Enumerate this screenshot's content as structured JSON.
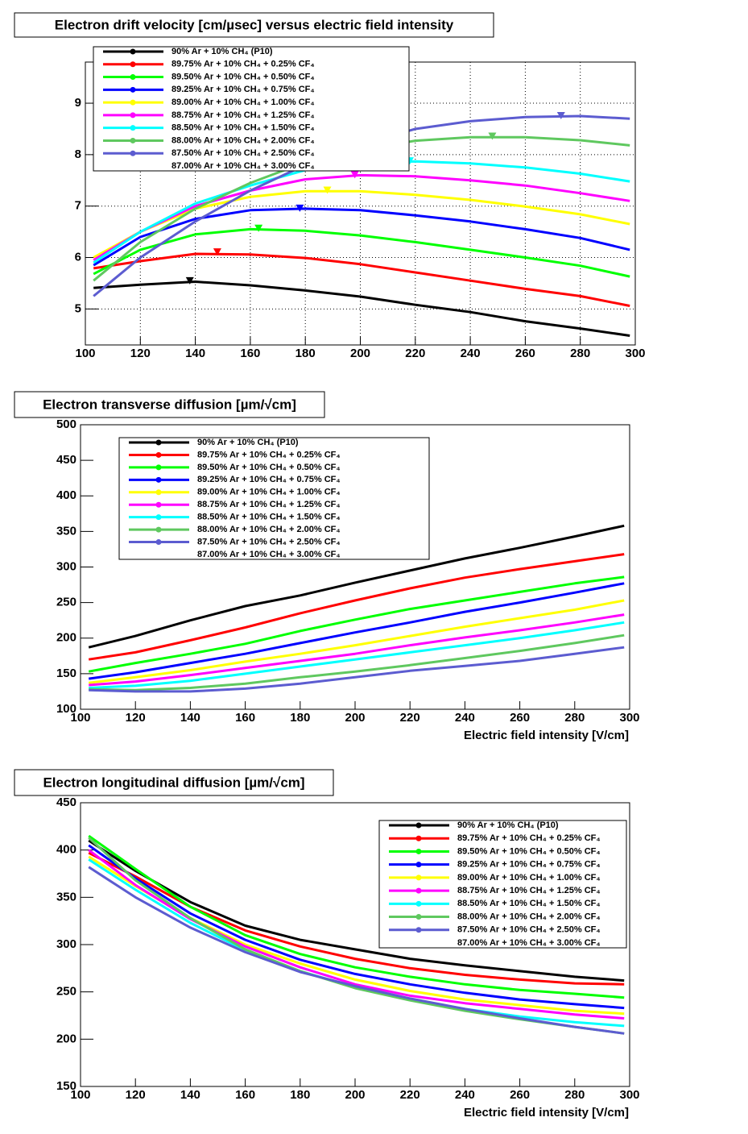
{
  "chart_data": [
    {
      "type": "line",
      "title": "Electron drift velocity [cm/µsec] versus electric field intensity",
      "x": [
        103,
        120,
        140,
        160,
        180,
        200,
        220,
        240,
        260,
        280,
        298
      ],
      "xlim": [
        100,
        300
      ],
      "xticks": [
        100,
        120,
        140,
        160,
        180,
        200,
        220,
        240,
        260,
        280,
        300
      ],
      "ylim": [
        4.3,
        9.8
      ],
      "yticks": [
        5,
        6,
        7,
        8,
        9
      ],
      "grid": true,
      "series": [
        {
          "name": "90% Ar + 10% CH₄ (P10)",
          "color": "#000000",
          "values": [
            5.41,
            5.47,
            5.53,
            5.46,
            5.36,
            5.24,
            5.08,
            4.94,
            4.76,
            4.62,
            4.48
          ],
          "peak": [
            138,
            5.54
          ]
        },
        {
          "name": "89.75% Ar + 10% CH₄ + 0.25% CF₄",
          "color": "#ff0000",
          "values": [
            5.79,
            5.93,
            6.07,
            6.06,
            5.99,
            5.87,
            5.71,
            5.55,
            5.39,
            5.25,
            5.06
          ],
          "peak": [
            148,
            6.1
          ]
        },
        {
          "name": "89.50% Ar + 10% CH₄ + 0.50% CF₄",
          "color": "#00ff00",
          "values": [
            5.68,
            6.15,
            6.45,
            6.55,
            6.52,
            6.43,
            6.3,
            6.15,
            6.0,
            5.84,
            5.63
          ],
          "peak": [
            163,
            6.56
          ]
        },
        {
          "name": "89.25% Ar + 10% CH₄ + 0.75% CF₄",
          "color": "#0000ff",
          "values": [
            5.85,
            6.4,
            6.75,
            6.92,
            6.95,
            6.92,
            6.82,
            6.7,
            6.55,
            6.38,
            6.15
          ],
          "peak": [
            178,
            6.95
          ]
        },
        {
          "name": "89.00% Ar + 10% CH₄ + 1.00% CF₄",
          "color": "#ffff00",
          "values": [
            6.0,
            6.5,
            6.95,
            7.18,
            7.29,
            7.29,
            7.22,
            7.12,
            6.99,
            6.84,
            6.65
          ],
          "peak": [
            188,
            7.3
          ]
        },
        {
          "name": "88.75% Ar + 10% CH₄ + 1.25% CF₄",
          "color": "#ff00ff",
          "values": [
            5.95,
            6.5,
            7.0,
            7.3,
            7.52,
            7.6,
            7.58,
            7.5,
            7.4,
            7.25,
            7.1
          ],
          "peak": [
            198,
            7.6
          ]
        },
        {
          "name": "88.50% Ar + 10% CH₄ + 1.50% CF₄",
          "color": "#00ffff",
          "values": [
            5.9,
            6.5,
            7.05,
            7.4,
            7.7,
            7.83,
            7.87,
            7.83,
            7.75,
            7.63,
            7.48
          ],
          "peak": [
            218,
            7.87
          ]
        },
        {
          "name": "88.00% Ar + 10% CH₄ + 2.00% CF₄",
          "color": "#5fc85f",
          "values": [
            5.55,
            6.3,
            6.95,
            7.45,
            7.85,
            8.1,
            8.27,
            8.34,
            8.34,
            8.28,
            8.18
          ],
          "peak": [
            248,
            8.35
          ]
        },
        {
          "name": "87.50% Ar + 10% CH₄ + 2.50% CF₄",
          "color": "#5c5cd0",
          "values": [
            5.25,
            6.0,
            6.7,
            7.3,
            7.8,
            8.2,
            8.5,
            8.65,
            8.73,
            8.75,
            8.7
          ],
          "peak": [
            273,
            8.75
          ]
        },
        {
          "name": "87.00% Ar + 10% CH₄ + 3.00% CF₄",
          "color": "#ffffff",
          "values": [
            null,
            null,
            null,
            null,
            null,
            null,
            null,
            null,
            null,
            null,
            null
          ]
        }
      ]
    },
    {
      "type": "line",
      "title": "Electron transverse diffusion [µm/√cm]",
      "x_label": "Electric field intensity [V/cm]",
      "x": [
        103,
        120,
        140,
        160,
        180,
        200,
        220,
        240,
        260,
        280,
        298
      ],
      "xlim": [
        100,
        300
      ],
      "xticks": [
        100,
        120,
        140,
        160,
        180,
        200,
        220,
        240,
        260,
        280,
        300
      ],
      "ylim": [
        100,
        500
      ],
      "yticks": [
        100,
        150,
        200,
        250,
        300,
        350,
        400,
        450,
        500
      ],
      "grid": false,
      "series": [
        {
          "name": "90% Ar + 10% CH₄ (P10)",
          "color": "#000000",
          "values": [
            187,
            203,
            225,
            245,
            260,
            278,
            295,
            312,
            327,
            343,
            358
          ]
        },
        {
          "name": "89.75% Ar + 10% CH₄ + 0.25% CF₄",
          "color": "#ff0000",
          "values": [
            170,
            180,
            197,
            215,
            235,
            253,
            270,
            285,
            297,
            308,
            318
          ]
        },
        {
          "name": "89.50% Ar + 10% CH₄ + 0.50% CF₄",
          "color": "#00ff00",
          "values": [
            153,
            165,
            178,
            192,
            210,
            226,
            241,
            253,
            265,
            277,
            286
          ]
        },
        {
          "name": "89.25% Ar + 10% CH₄ + 0.75% CF₄",
          "color": "#0000ff",
          "values": [
            143,
            152,
            165,
            178,
            193,
            208,
            222,
            237,
            250,
            264,
            277
          ]
        },
        {
          "name": "89.00% Ar + 10% CH₄ + 1.00% CF₄",
          "color": "#ffff00",
          "values": [
            137,
            145,
            155,
            167,
            178,
            190,
            203,
            216,
            228,
            240,
            253
          ]
        },
        {
          "name": "88.75% Ar + 10% CH₄ + 1.25% CF₄",
          "color": "#ff00ff",
          "values": [
            134,
            139,
            148,
            158,
            168,
            178,
            190,
            201,
            211,
            222,
            233
          ]
        },
        {
          "name": "88.50% Ar + 10% CH₄ + 1.50% CF₄",
          "color": "#00ffff",
          "values": [
            130,
            133,
            140,
            150,
            160,
            170,
            180,
            190,
            200,
            211,
            222
          ]
        },
        {
          "name": "88.00% Ar + 10% CH₄ + 2.00% CF₄",
          "color": "#5fc85f",
          "values": [
            128,
            127,
            130,
            136,
            145,
            153,
            162,
            172,
            182,
            193,
            204
          ]
        },
        {
          "name": "87.50% Ar + 10% CH₄ + 2.50% CF₄",
          "color": "#5c5cd0",
          "values": [
            127,
            125,
            125,
            129,
            136,
            145,
            154,
            161,
            168,
            178,
            187
          ]
        },
        {
          "name": "87.00% Ar + 10% CH₄ + 3.00% CF₄",
          "color": "#ffffff",
          "values": [
            null,
            null,
            null,
            null,
            null,
            null,
            null,
            null,
            null,
            null,
            null
          ]
        }
      ]
    },
    {
      "type": "line",
      "title": "Electron longitudinal diffusion [µm/√cm]",
      "x_label": "Electric field intensity [V/cm]",
      "x": [
        103,
        120,
        140,
        160,
        180,
        200,
        220,
        240,
        260,
        280,
        298
      ],
      "xlim": [
        100,
        300
      ],
      "xticks": [
        100,
        120,
        140,
        160,
        180,
        200,
        220,
        240,
        260,
        280,
        300
      ],
      "ylim": [
        150,
        450
      ],
      "yticks": [
        150,
        200,
        250,
        300,
        350,
        400,
        450
      ],
      "grid": false,
      "series": [
        {
          "name": "90% Ar + 10% CH₄ (P10)",
          "color": "#000000",
          "values": [
            410,
            378,
            345,
            320,
            305,
            295,
            285,
            278,
            272,
            266,
            262
          ]
        },
        {
          "name": "89.75% Ar + 10% CH₄ + 0.25% CF₄",
          "color": "#ff0000",
          "values": [
            397,
            372,
            340,
            315,
            298,
            285,
            275,
            268,
            263,
            259,
            258
          ]
        },
        {
          "name": "89.50% Ar + 10% CH₄ + 0.50% CF₄",
          "color": "#00ff00",
          "values": [
            415,
            380,
            340,
            310,
            290,
            276,
            266,
            258,
            252,
            248,
            244
          ]
        },
        {
          "name": "89.25% Ar + 10% CH₄ + 0.75% CF₄",
          "color": "#0000ff",
          "values": [
            405,
            370,
            333,
            305,
            284,
            269,
            258,
            249,
            242,
            237,
            233
          ]
        },
        {
          "name": "89.00% Ar + 10% CH₄ + 1.00% CF₄",
          "color": "#ffff00",
          "values": [
            393,
            362,
            328,
            300,
            280,
            263,
            251,
            242,
            236,
            230,
            227
          ]
        },
        {
          "name": "88.75% Ar + 10% CH₄ + 1.25% CF₄",
          "color": "#ff00ff",
          "values": [
            400,
            363,
            327,
            298,
            276,
            258,
            246,
            238,
            232,
            226,
            222
          ]
        },
        {
          "name": "88.50% Ar + 10% CH₄ + 1.50% CF₄",
          "color": "#00ffff",
          "values": [
            390,
            358,
            323,
            294,
            272,
            255,
            242,
            232,
            224,
            218,
            214
          ]
        },
        {
          "name": "88.00% Ar + 10% CH₄ + 2.00% CF₄",
          "color": "#5fc85f",
          "values": [
            413,
            368,
            328,
            295,
            272,
            254,
            241,
            230,
            221,
            213,
            206
          ]
        },
        {
          "name": "87.50% Ar + 10% CH₄ + 2.50% CF₄",
          "color": "#5c5cd0",
          "values": [
            382,
            350,
            318,
            292,
            271,
            256,
            243,
            232,
            222,
            213,
            206
          ]
        },
        {
          "name": "87.00% Ar + 10% CH₄ + 3.00% CF₄",
          "color": "#ffffff",
          "values": [
            null,
            null,
            null,
            null,
            null,
            null,
            null,
            null,
            null,
            null,
            null
          ]
        }
      ]
    }
  ]
}
